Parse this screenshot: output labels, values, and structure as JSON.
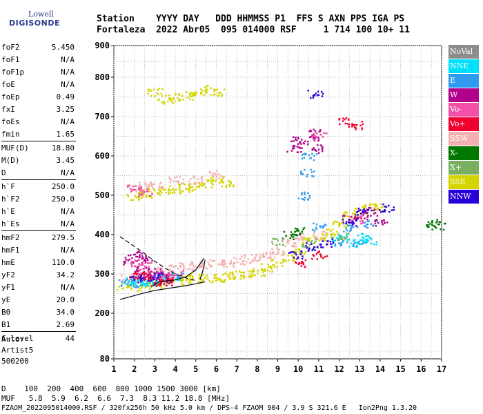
{
  "logo": {
    "line1": "Lowell",
    "line2": "DIGISONDE"
  },
  "header": {
    "row1": "Station    YYYY DAY   DDD HHMMSS P1  FFS S AXN PPS IGA PS",
    "row2": "Fortaleza  2022 Abr05  095 014000 RSF     1 714 100 10+ 11"
  },
  "params": [
    {
      "k": "foF2",
      "v": "5.450"
    },
    {
      "k": "foF1",
      "v": "N/A"
    },
    {
      "k": "foF1p",
      "v": "N/A"
    },
    {
      "k": "foE",
      "v": "N/A"
    },
    {
      "k": "foEp",
      "v": "0.49"
    },
    {
      "k": "fxI",
      "v": "3.25"
    },
    {
      "k": "foEs",
      "v": "N/A"
    },
    {
      "k": "fmin",
      "v": "1.65"
    },
    {
      "k": "MUF(D)",
      "v": "18.80"
    },
    {
      "k": "M(D)",
      "v": "3.45"
    },
    {
      "k": "D",
      "v": "N/A"
    },
    {
      "k": "h`F",
      "v": "250.0"
    },
    {
      "k": "h`F2",
      "v": "250.0"
    },
    {
      "k": "h`E",
      "v": "N/A"
    },
    {
      "k": "h`Es",
      "v": "N/A"
    },
    {
      "k": "hmF2",
      "v": "279.5"
    },
    {
      "k": "hmF1",
      "v": "N/A"
    },
    {
      "k": "hmE",
      "v": "110.0"
    },
    {
      "k": "yF2",
      "v": "34.2"
    },
    {
      "k": "yF1",
      "v": "N/A"
    },
    {
      "k": "yE",
      "v": "20.0"
    },
    {
      "k": "B0",
      "v": "34.0"
    },
    {
      "k": "B1",
      "v": "2.69"
    },
    {
      "k": "C-level",
      "v": "44"
    }
  ],
  "auto": {
    "l1": "Auto:",
    "l2": "Artist5",
    "l3": "500200"
  },
  "footer": {
    "d_row": "D    100  200  400  600  800 1000 1500 3000 [km]",
    "muf_row": "MUF   5.8  5.9  6.2  6.6  7.3  8.3 11.2 18.8 [MHz]",
    "info_row": "FZAOM_2022095014000.RSF / 320fx256h 50 kHz 5.0 km / DPS-4 FZAOM 904 / 3.9 S 321.6 E   Ion2Png 1.3.20"
  },
  "legend": [
    {
      "label": "NoVal",
      "color": "#8c8c8c"
    },
    {
      "label": "NNE",
      "color": "#00e0f8"
    },
    {
      "label": "E",
      "color": "#2f9bf0"
    },
    {
      "label": "W",
      "color": "#b0008c"
    },
    {
      "label": "Vo-",
      "color": "#f050a8"
    },
    {
      "label": "Vo+",
      "color": "#f00030"
    },
    {
      "label": "SSW",
      "color": "#f4b0b0"
    },
    {
      "label": "X-",
      "color": "#007800"
    },
    {
      "label": "X+",
      "color": "#78b060"
    },
    {
      "label": "SSE",
      "color": "#d4d400"
    },
    {
      "label": "NNW",
      "color": "#2800d8"
    }
  ],
  "chart_data": {
    "type": "scatter",
    "x_ticks": [
      "1",
      "2",
      "3",
      "4",
      "5",
      "6",
      "7",
      "8",
      "9",
      "10",
      "11",
      "12",
      "13",
      "14",
      "15",
      "16",
      "17"
    ],
    "y_ticks": [
      "80",
      "200",
      "300",
      "400",
      "500",
      "600",
      "700",
      "800",
      "900"
    ],
    "xlim": [
      1,
      17
    ],
    "grid": true,
    "series": [
      {
        "name": "SSE",
        "color": "#d4d400",
        "points": [
          [
            1.5,
            270
          ],
          [
            2,
            268
          ],
          [
            2.5,
            272
          ],
          [
            3,
            275
          ],
          [
            3.5,
            282
          ],
          [
            4,
            285
          ],
          [
            4.5,
            288
          ],
          [
            5,
            290
          ],
          [
            5.5,
            290
          ],
          [
            6,
            292
          ],
          [
            6.5,
            295
          ],
          [
            7,
            298
          ],
          [
            7.5,
            300
          ],
          [
            8,
            305
          ],
          [
            8.5,
            318
          ],
          [
            9,
            328
          ],
          [
            9.5,
            345
          ],
          [
            10,
            360
          ],
          [
            10.5,
            385
          ],
          [
            11,
            395
          ],
          [
            11.5,
            405
          ],
          [
            12,
            430
          ],
          [
            12.5,
            450
          ],
          [
            13,
            465
          ],
          [
            13.5,
            470
          ],
          [
            14,
            470
          ],
          [
            2,
            500
          ],
          [
            2.5,
            505
          ],
          [
            3,
            510
          ],
          [
            3.5,
            512
          ],
          [
            4,
            515
          ],
          [
            4.5,
            520
          ],
          [
            5,
            525
          ],
          [
            5.5,
            532
          ],
          [
            6,
            540
          ],
          [
            6.5,
            532
          ],
          [
            3,
            765
          ],
          [
            3.5,
            745
          ],
          [
            4,
            750
          ],
          [
            4.5,
            755
          ],
          [
            5,
            760
          ],
          [
            5.5,
            770
          ],
          [
            6,
            765
          ]
        ]
      },
      {
        "name": "SSW",
        "color": "#f4b0b0",
        "points": [
          [
            1.7,
            290
          ],
          [
            2,
            292
          ],
          [
            2.5,
            300
          ],
          [
            3,
            305
          ],
          [
            3.5,
            312
          ],
          [
            4,
            318
          ],
          [
            4.5,
            320
          ],
          [
            5,
            322
          ],
          [
            5.5,
            325
          ],
          [
            6,
            330
          ],
          [
            6.5,
            328
          ],
          [
            7,
            333
          ],
          [
            7.5,
            340
          ],
          [
            8,
            345
          ],
          [
            8.5,
            350
          ],
          [
            9,
            360
          ],
          [
            2,
            520
          ],
          [
            2.5,
            525
          ],
          [
            3,
            530
          ],
          [
            4,
            540
          ],
          [
            5,
            540
          ],
          [
            6,
            555
          ],
          [
            9.5,
            380
          ],
          [
            10,
            395
          ],
          [
            11,
            400
          ]
        ]
      },
      {
        "name": "E",
        "color": "#2f9bf0",
        "points": [
          [
            1.6,
            280
          ],
          [
            2,
            278
          ],
          [
            2.5,
            283
          ],
          [
            3,
            285
          ],
          [
            3.5,
            290
          ],
          [
            4,
            295
          ],
          [
            10.2,
            500
          ],
          [
            10.4,
            560
          ],
          [
            10.5,
            600
          ],
          [
            11,
            420
          ],
          [
            12,
            380
          ],
          [
            12.5,
            420
          ],
          [
            13,
            380
          ],
          [
            13.5,
            430
          ]
        ]
      },
      {
        "name": "NNE",
        "color": "#00e0f8",
        "points": [
          [
            1.7,
            285
          ],
          [
            2.2,
            280
          ],
          [
            2.8,
            282
          ],
          [
            3.3,
            288
          ],
          [
            3.8,
            292
          ],
          [
            12,
            390
          ],
          [
            12.8,
            380
          ],
          [
            13.2,
            395
          ],
          [
            13.6,
            385
          ]
        ]
      },
      {
        "name": "W",
        "color": "#b0008c",
        "points": [
          [
            1.8,
            335
          ],
          [
            2,
            350
          ],
          [
            2.2,
            310
          ],
          [
            2.5,
            300
          ],
          [
            3,
            305
          ],
          [
            3.3,
            295
          ],
          [
            3.5,
            280
          ],
          [
            2.5,
            340
          ],
          [
            10.6,
            640
          ],
          [
            10.8,
            660
          ],
          [
            11,
            620
          ],
          [
            12.5,
            440
          ],
          [
            13,
            450
          ],
          [
            13.5,
            460
          ],
          [
            14,
            430
          ],
          [
            9.8,
            620
          ],
          [
            9.9,
            640
          ]
        ]
      },
      {
        "name": "Vo-",
        "color": "#f050a8",
        "points": [
          [
            2,
            330
          ],
          [
            2.5,
            320
          ],
          [
            3,
            300
          ],
          [
            3.5,
            290
          ],
          [
            4,
            300
          ],
          [
            2,
            520
          ],
          [
            2.5,
            510
          ],
          [
            11,
            650
          ],
          [
            12.8,
            440
          ]
        ]
      },
      {
        "name": "Vo+",
        "color": "#f00030",
        "points": [
          [
            2.1,
            300
          ],
          [
            2.6,
            290
          ],
          [
            3,
            280
          ],
          [
            3.5,
            285
          ],
          [
            12.3,
            690
          ],
          [
            12.8,
            680
          ],
          [
            10,
            330
          ],
          [
            11,
            350
          ]
        ]
      },
      {
        "name": "X-",
        "color": "#007800",
        "points": [
          [
            16.5,
            430
          ],
          [
            16.8,
            425
          ],
          [
            9.5,
            400
          ],
          [
            10,
            410
          ]
        ]
      },
      {
        "name": "X+",
        "color": "#78b060",
        "points": [
          [
            9,
            385
          ],
          [
            10.5,
            380
          ],
          [
            12.2,
            395
          ]
        ]
      },
      {
        "name": "NNW",
        "color": "#2800d8",
        "points": [
          [
            2.2,
            290
          ],
          [
            3,
            295
          ],
          [
            9.8,
            350
          ],
          [
            10.7,
            370
          ],
          [
            11.3,
            380
          ],
          [
            12.5,
            430
          ],
          [
            13.2,
            460
          ],
          [
            14.3,
            470
          ],
          [
            10.8,
            760
          ]
        ]
      }
    ],
    "lines": [
      {
        "name": "profile",
        "color": "#000000",
        "dash": false,
        "points": [
          [
            1.3,
            235
          ],
          [
            2,
            245
          ],
          [
            2.5,
            252
          ],
          [
            3,
            258
          ],
          [
            3.5,
            262
          ],
          [
            4,
            266
          ],
          [
            4.5,
            270
          ],
          [
            5,
            275
          ],
          [
            5.45,
            280
          ]
        ]
      },
      {
        "name": "profile-upper",
        "color": "#000000",
        "dash": false,
        "points": [
          [
            5.2,
            285
          ],
          [
            5.3,
            300
          ],
          [
            5.4,
            320
          ],
          [
            5.45,
            336
          ]
        ]
      },
      {
        "name": "virtual",
        "color": "#000000",
        "dash": false,
        "points": [
          [
            2.9,
            270
          ],
          [
            3.2,
            280
          ],
          [
            3.5,
            282
          ],
          [
            4,
            285
          ],
          [
            4.5,
            292
          ],
          [
            5,
            310
          ],
          [
            5.4,
            340
          ]
        ]
      },
      {
        "name": "muf-dash",
        "color": "#000000",
        "dash": true,
        "points": [
          [
            1.3,
            395
          ],
          [
            2,
            370
          ],
          [
            2.5,
            352
          ],
          [
            3,
            332
          ],
          [
            3.5,
            315
          ],
          [
            4,
            300
          ],
          [
            4.5,
            290
          ],
          [
            5,
            283
          ]
        ]
      }
    ]
  }
}
